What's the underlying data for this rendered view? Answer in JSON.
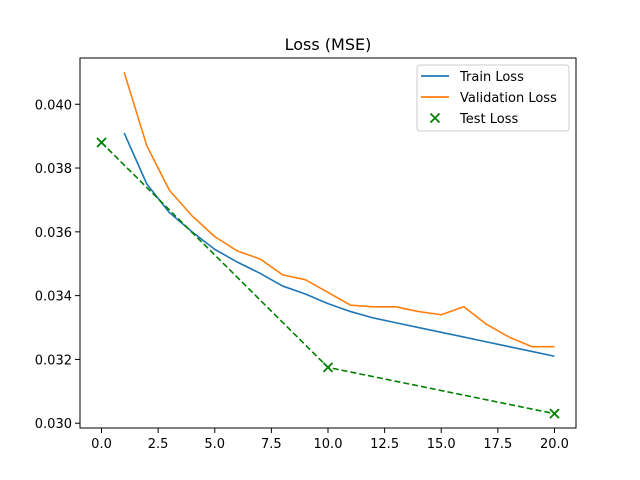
{
  "chart_data": {
    "type": "line",
    "title": "Loss (MSE)",
    "xlabel": "",
    "ylabel": "",
    "xlim": [
      -0.95,
      20.95
    ],
    "ylim": [
      0.02985,
      0.04145
    ],
    "xticks": [
      0.0,
      2.5,
      5.0,
      7.5,
      10.0,
      12.5,
      15.0,
      17.5,
      20.0
    ],
    "xtick_labels": [
      "0.0",
      "2.5",
      "5.0",
      "7.5",
      "10.0",
      "12.5",
      "15.0",
      "17.5",
      "20.0"
    ],
    "yticks": [
      0.03,
      0.032,
      0.034,
      0.036,
      0.038,
      0.04
    ],
    "ytick_labels": [
      "0.030",
      "0.032",
      "0.034",
      "0.036",
      "0.038",
      "0.040"
    ],
    "grid": false,
    "legend_position": "upper-right",
    "series": [
      {
        "name": "Train Loss",
        "kind": "line",
        "color": "#1f77b4",
        "x": [
          1,
          2,
          3,
          4,
          5,
          6,
          7,
          8,
          9,
          10,
          11,
          12,
          13,
          14,
          15,
          16,
          17,
          18,
          19,
          20
        ],
        "y": [
          0.0391,
          0.0375,
          0.0366,
          0.036,
          0.03545,
          0.03505,
          0.0347,
          0.0343,
          0.03405,
          0.03375,
          0.0335,
          0.0333,
          0.03315,
          0.033,
          0.03285,
          0.0327,
          0.03255,
          0.0324,
          0.03225,
          0.0321
        ]
      },
      {
        "name": "Validation Loss",
        "kind": "line",
        "color": "#ff7f0e",
        "x": [
          1,
          2,
          3,
          4,
          5,
          6,
          7,
          8,
          9,
          10,
          11,
          12,
          13,
          14,
          15,
          16,
          17,
          18,
          19,
          20
        ],
        "y": [
          0.041,
          0.0387,
          0.0373,
          0.0365,
          0.03585,
          0.0354,
          0.03515,
          0.03465,
          0.0345,
          0.0341,
          0.0337,
          0.03365,
          0.03365,
          0.0335,
          0.0334,
          0.03365,
          0.0331,
          0.0327,
          0.0324,
          0.0324
        ]
      },
      {
        "name": "Test Loss",
        "kind": "scatter-dashed",
        "marker": "x",
        "color": "#008000",
        "x": [
          0,
          10,
          20
        ],
        "y": [
          0.0388,
          0.03175,
          0.0303
        ]
      }
    ]
  }
}
